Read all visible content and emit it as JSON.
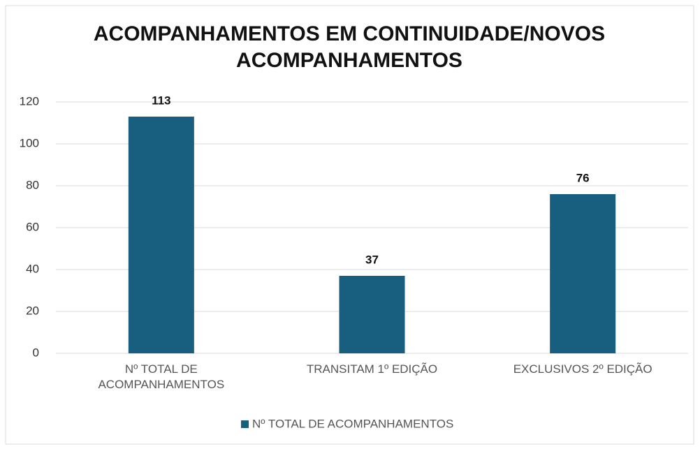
{
  "chart_data": {
    "type": "bar",
    "title": "ACOMPANHAMENTOS EM CONTINUIDADE/NOVOS ACOMPANHAMENTOS",
    "categories": [
      "Nº TOTAL DE ACOMPANHAMENTOS",
      "TRANSITAM 1º EDIÇÃO",
      "EXCLUSIVOS 2º EDIÇÃO"
    ],
    "series": [
      {
        "name": "Nº TOTAL DE ACOMPANHAMENTOS",
        "color": "#175e7f",
        "values": [
          113,
          37,
          76
        ]
      }
    ],
    "ylim": [
      0,
      120
    ],
    "yticks": [
      0,
      20,
      40,
      60,
      80,
      100,
      120
    ],
    "grid": true,
    "legend": "bottom"
  }
}
